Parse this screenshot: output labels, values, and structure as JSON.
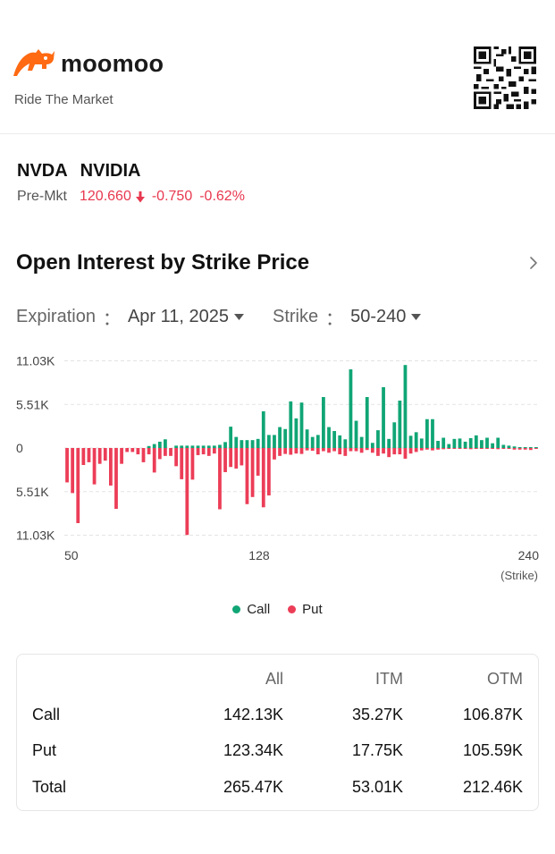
{
  "brand": {
    "name": "moomoo",
    "tagline": "Ride The Market",
    "logo_icon": "moomoo-bull-icon",
    "qr_icon": "qr-code-icon"
  },
  "stock": {
    "symbol": "NVDA",
    "name": "NVIDIA",
    "session": "Pre-Mkt",
    "price": "120.660",
    "change": "-0.750",
    "change_pct": "-0.62%",
    "direction_icon": "arrow-down-icon"
  },
  "section": {
    "title": "Open Interest by Strike Price",
    "chevron_icon": "chevron-right-icon"
  },
  "filters": {
    "expiration": {
      "label": "Expiration",
      "colon": "：",
      "value": "Apr 11, 2025"
    },
    "strike": {
      "label": "Strike",
      "colon": "：",
      "value": "50-240"
    }
  },
  "colors": {
    "call": "#10a575",
    "put": "#ec3d57",
    "grid": "#e3e3e3",
    "axis_text": "#444444",
    "negative": "#e8384f",
    "brand_orange": "#ff6a12"
  },
  "chart_data": {
    "type": "bar",
    "title": "Open Interest by Strike Price",
    "xlabel": "(Strike)",
    "x_tick_labels": [
      "50",
      "128",
      "240"
    ],
    "y_tick_labels": [
      "11.03K",
      "5.51K",
      "0",
      "5.51K",
      "11.03K"
    ],
    "ylim": [
      -11030,
      11030
    ],
    "series": [
      {
        "name": "Call",
        "values": [
          0,
          0,
          0,
          0,
          0,
          0,
          0,
          0,
          0,
          0,
          0,
          0,
          0,
          0,
          0,
          250,
          500,
          800,
          1100,
          0,
          300,
          300,
          300,
          300,
          300,
          300,
          300,
          300,
          400,
          750,
          2700,
          1400,
          1000,
          1000,
          1000,
          1150,
          4650,
          1650,
          1650,
          2650,
          2400,
          5900,
          3750,
          5750,
          2350,
          1400,
          1650,
          6450,
          2650,
          2150,
          1600,
          1100,
          9950,
          3450,
          1400,
          6450,
          650,
          2250,
          7700,
          1150,
          3250,
          6000,
          10500,
          1550,
          2000,
          1200,
          3650,
          3650,
          900,
          1300,
          500,
          1150,
          1200,
          800,
          1250,
          1600,
          1000,
          1300,
          600,
          1300,
          400,
          300,
          200,
          100,
          50,
          50,
          50
        ]
      },
      {
        "name": "Put",
        "values": [
          -4350,
          -5700,
          -9500,
          -2150,
          -1800,
          -4600,
          -2000,
          -1600,
          -4750,
          -7700,
          -2000,
          -500,
          -500,
          -800,
          -1800,
          -800,
          -3100,
          -1400,
          -1000,
          -1000,
          -2300,
          -3950,
          -11000,
          -4000,
          -900,
          -800,
          -1000,
          -700,
          -7750,
          -3050,
          -2400,
          -2600,
          -2200,
          -7100,
          -6200,
          -3500,
          -7500,
          -6000,
          -1450,
          -1000,
          -750,
          -850,
          -700,
          -750,
          -300,
          -350,
          -800,
          -400,
          -600,
          -400,
          -800,
          -1000,
          -400,
          -400,
          -600,
          -250,
          -600,
          -1000,
          -700,
          -1150,
          -800,
          -800,
          -1350,
          -700,
          -500,
          -300,
          -200,
          -300,
          -200,
          -150,
          -100,
          -100,
          -100,
          -100,
          -150,
          -100,
          -100,
          -100,
          -100,
          -150,
          -100,
          -100,
          -200,
          -200,
          -200,
          -250,
          -100
        ]
      }
    ]
  },
  "legend": [
    {
      "label": "Call"
    },
    {
      "label": "Put"
    }
  ],
  "summary": {
    "headers": [
      "",
      "All",
      "ITM",
      "OTM"
    ],
    "rows": [
      {
        "label": "Call",
        "all": "142.13K",
        "itm": "35.27K",
        "otm": "106.87K"
      },
      {
        "label": "Put",
        "all": "123.34K",
        "itm": "17.75K",
        "otm": "105.59K"
      },
      {
        "label": "Total",
        "all": "265.47K",
        "itm": "53.01K",
        "otm": "212.46K"
      }
    ]
  }
}
